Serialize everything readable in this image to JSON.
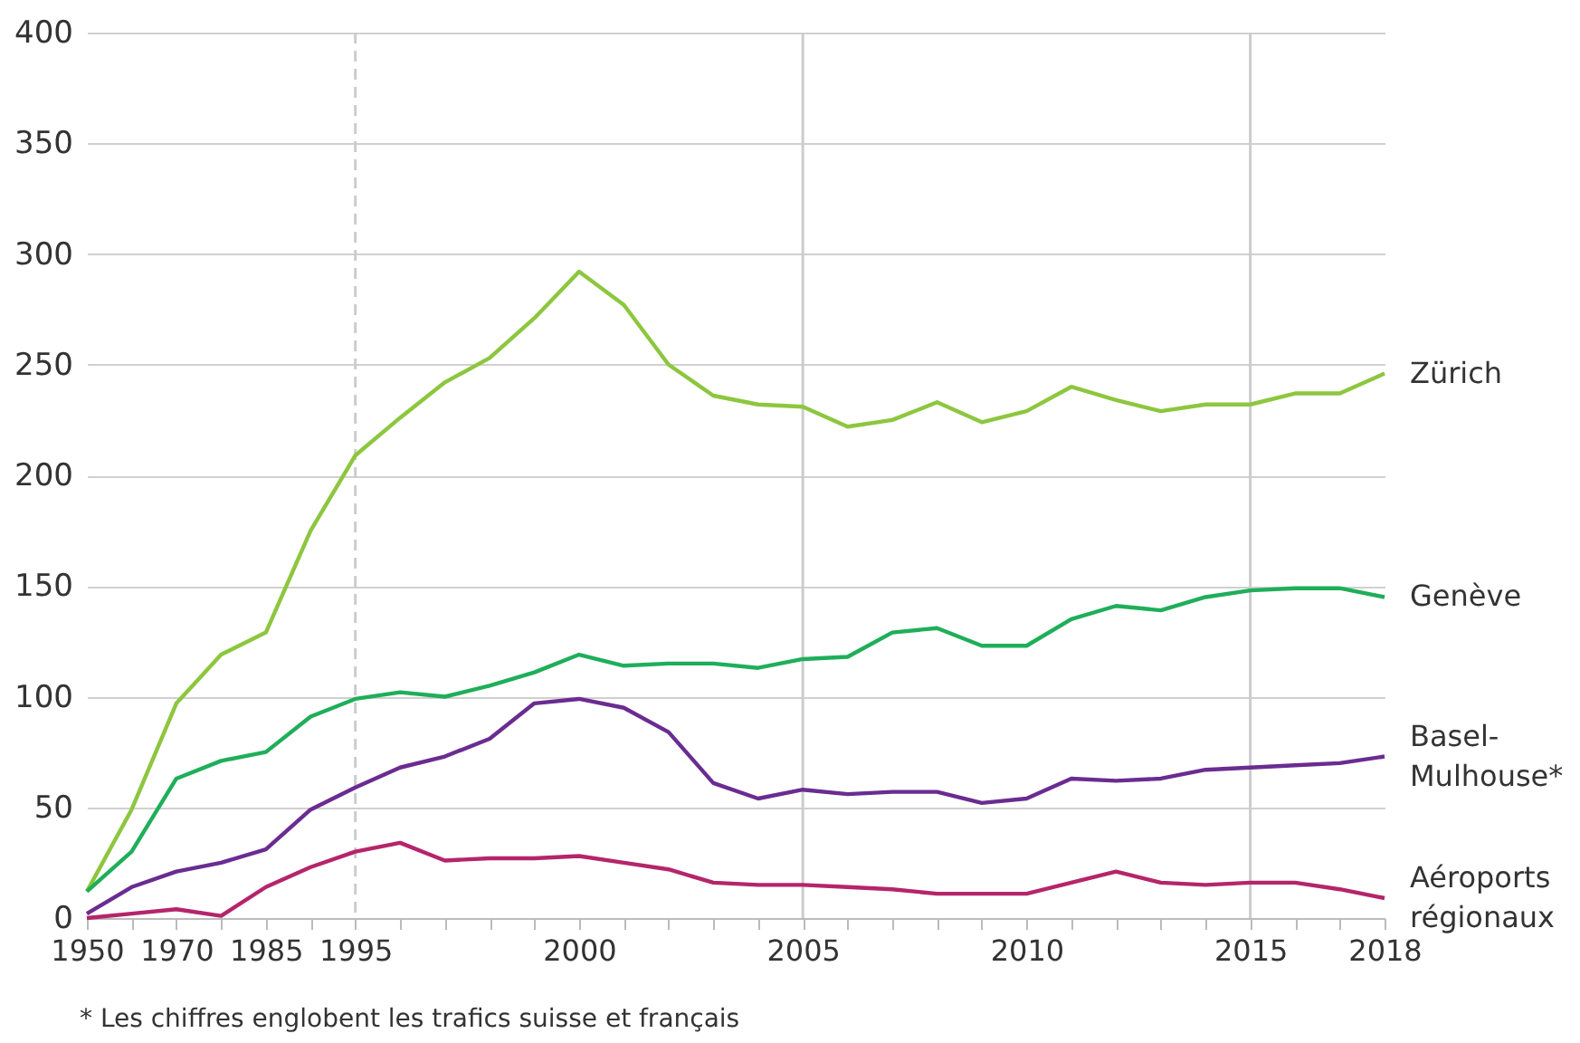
{
  "chart_data": {
    "type": "line",
    "categories": [
      "1950",
      null,
      "1970",
      null,
      "1985",
      null,
      "1995",
      null,
      null,
      null,
      null,
      "2000",
      null,
      null,
      null,
      null,
      "2005",
      null,
      null,
      null,
      null,
      "2010",
      null,
      null,
      null,
      null,
      "2015",
      null,
      null,
      "2018"
    ],
    "series": [
      {
        "name": "Zürich",
        "color": "#8dc63f",
        "values": [
          12,
          49,
          97,
          119,
          129,
          175,
          209,
          226,
          242,
          253,
          271,
          292,
          277,
          250,
          236,
          232,
          231,
          222,
          225,
          233,
          224,
          229,
          240,
          234,
          229,
          232,
          232,
          237,
          237,
          246
        ]
      },
      {
        "name": "Genève",
        "color": "#1fae5a",
        "values": [
          12,
          30,
          63,
          71,
          75,
          91,
          99,
          102,
          100,
          105,
          111,
          119,
          114,
          115,
          115,
          113,
          117,
          118,
          129,
          131,
          123,
          123,
          135,
          141,
          139,
          145,
          148,
          149,
          149,
          145
        ]
      },
      {
        "name": "Basel-Mulhouse*",
        "color": "#6a2c91",
        "values": [
          2,
          14,
          21,
          25,
          31,
          49,
          59,
          68,
          73,
          81,
          97,
          99,
          95,
          84,
          61,
          54,
          58,
          56,
          57,
          57,
          52,
          54,
          63,
          62,
          63,
          67,
          68,
          69,
          70,
          73
        ]
      },
      {
        "name": "Aéroports régionaux",
        "color": "#b5256b",
        "values": [
          0,
          2,
          4,
          1,
          14,
          23,
          30,
          34,
          26,
          27,
          27,
          28,
          25,
          22,
          16,
          15,
          15,
          14,
          13,
          11,
          11,
          11,
          16,
          21,
          16,
          15,
          16,
          16,
          13,
          9
        ]
      }
    ],
    "ylim": [
      0,
      400
    ],
    "yticks": [
      0,
      50,
      100,
      150,
      200,
      250,
      300,
      350,
      400
    ],
    "grid": "y",
    "legend": false,
    "line_style": "solid",
    "marker": "none",
    "ref_lines": [
      {
        "axis": "x",
        "value": "1995",
        "color": "#cccccc",
        "line_style": "dashed"
      },
      {
        "axis": "x",
        "value": "2005",
        "color": "#cccccc",
        "line_style": "solid"
      },
      {
        "axis": "x",
        "value": "2015",
        "color": "#cccccc",
        "line_style": "solid"
      }
    ],
    "annotations": [
      "* Les chiffres englobent les trafics suisse et français"
    ]
  }
}
